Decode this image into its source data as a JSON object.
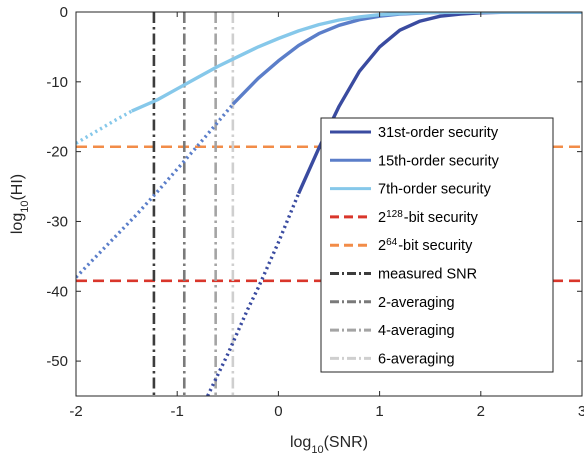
{
  "chart_data": {
    "type": "line",
    "xlabel": "log10(SNR)",
    "ylabel": "log10(HI)",
    "xlim": [
      -2,
      3
    ],
    "ylim": [
      -55,
      0
    ],
    "xticks": [
      -2,
      -1,
      0,
      1,
      2,
      3
    ],
    "yticks": [
      0,
      -10,
      -20,
      -30,
      -40,
      -50
    ],
    "xtick_labels": [
      "-2",
      "-1",
      "0",
      "1",
      "2",
      "3"
    ],
    "ytick_labels": [
      "0",
      "-10",
      "-20",
      "-30",
      "-40",
      "-50"
    ],
    "grid": false,
    "legend_position": "inside-right",
    "series": [
      {
        "name": "31st-order security",
        "kind": "curve",
        "color": "#3a4ba0",
        "solid_from_x": 0.2,
        "points": [
          [
            -0.7,
            -55
          ],
          [
            -0.5,
            -49
          ],
          [
            -0.3,
            -42.5
          ],
          [
            -0.2,
            -39.5
          ],
          [
            0,
            -33
          ],
          [
            0.2,
            -26
          ],
          [
            0.4,
            -19.5
          ],
          [
            0.6,
            -13.5
          ],
          [
            0.8,
            -8.5
          ],
          [
            1.0,
            -5
          ],
          [
            1.2,
            -2.6
          ],
          [
            1.4,
            -1.3
          ],
          [
            1.6,
            -0.6
          ],
          [
            1.8,
            -0.3
          ],
          [
            2.0,
            -0.12
          ],
          [
            2.2,
            -0.04
          ],
          [
            2.5,
            0
          ],
          [
            3.0,
            0
          ]
        ]
      },
      {
        "name": "15th-order security",
        "kind": "curve",
        "color": "#5b7ec9",
        "solid_from_x": -0.45,
        "points": [
          [
            -2,
            -38
          ],
          [
            -1.8,
            -35
          ],
          [
            -1.6,
            -32
          ],
          [
            -1.4,
            -29
          ],
          [
            -1.2,
            -25.8
          ],
          [
            -1.0,
            -22.5
          ],
          [
            -0.8,
            -19.2
          ],
          [
            -0.6,
            -15.8
          ],
          [
            -0.45,
            -13.2
          ],
          [
            -0.2,
            -9.5
          ],
          [
            0,
            -7
          ],
          [
            0.2,
            -4.8
          ],
          [
            0.4,
            -3.1
          ],
          [
            0.6,
            -1.9
          ],
          [
            0.8,
            -1.1
          ],
          [
            1.0,
            -0.6
          ],
          [
            1.2,
            -0.3
          ],
          [
            1.5,
            -0.1
          ],
          [
            2.0,
            0
          ],
          [
            3.0,
            0
          ]
        ]
      },
      {
        "name": "7th-order security",
        "kind": "curve",
        "color": "#86c8ea",
        "solid_from_x": -1.45,
        "points": [
          [
            -2,
            -18.8
          ],
          [
            -1.8,
            -17.1
          ],
          [
            -1.6,
            -15.4
          ],
          [
            -1.45,
            -14.2
          ],
          [
            -1.2,
            -12.6
          ],
          [
            -1.0,
            -11
          ],
          [
            -0.8,
            -9.4
          ],
          [
            -0.6,
            -7.8
          ],
          [
            -0.4,
            -6.4
          ],
          [
            -0.2,
            -5
          ],
          [
            0,
            -3.8
          ],
          [
            0.2,
            -2.7
          ],
          [
            0.4,
            -1.8
          ],
          [
            0.6,
            -1.15
          ],
          [
            0.8,
            -0.7
          ],
          [
            1.0,
            -0.38
          ],
          [
            1.3,
            -0.15
          ],
          [
            1.6,
            -0.05
          ],
          [
            2.0,
            0
          ],
          [
            3.0,
            0
          ]
        ]
      },
      {
        "name": "2128-bit security",
        "label_base": "2",
        "label_exp": "128",
        "label_rest": "-bit security",
        "kind": "hline",
        "y": -38.5,
        "color": "#d9362b"
      },
      {
        "name": "264-bit security",
        "label_base": "2",
        "label_exp": "64",
        "label_rest": "-bit security",
        "kind": "hline",
        "y": -19.3,
        "color": "#f28c48"
      },
      {
        "name": "measured SNR",
        "kind": "vline",
        "x": -1.23,
        "color": "#3c3c3c"
      },
      {
        "name": "2-averaging",
        "kind": "vline",
        "x": -0.93,
        "color": "#7a7a7a"
      },
      {
        "name": "4-averaging",
        "kind": "vline",
        "x": -0.62,
        "color": "#a4a4a4"
      },
      {
        "name": "6-averaging",
        "kind": "vline",
        "x": -0.45,
        "color": "#cfcfcf"
      }
    ]
  }
}
